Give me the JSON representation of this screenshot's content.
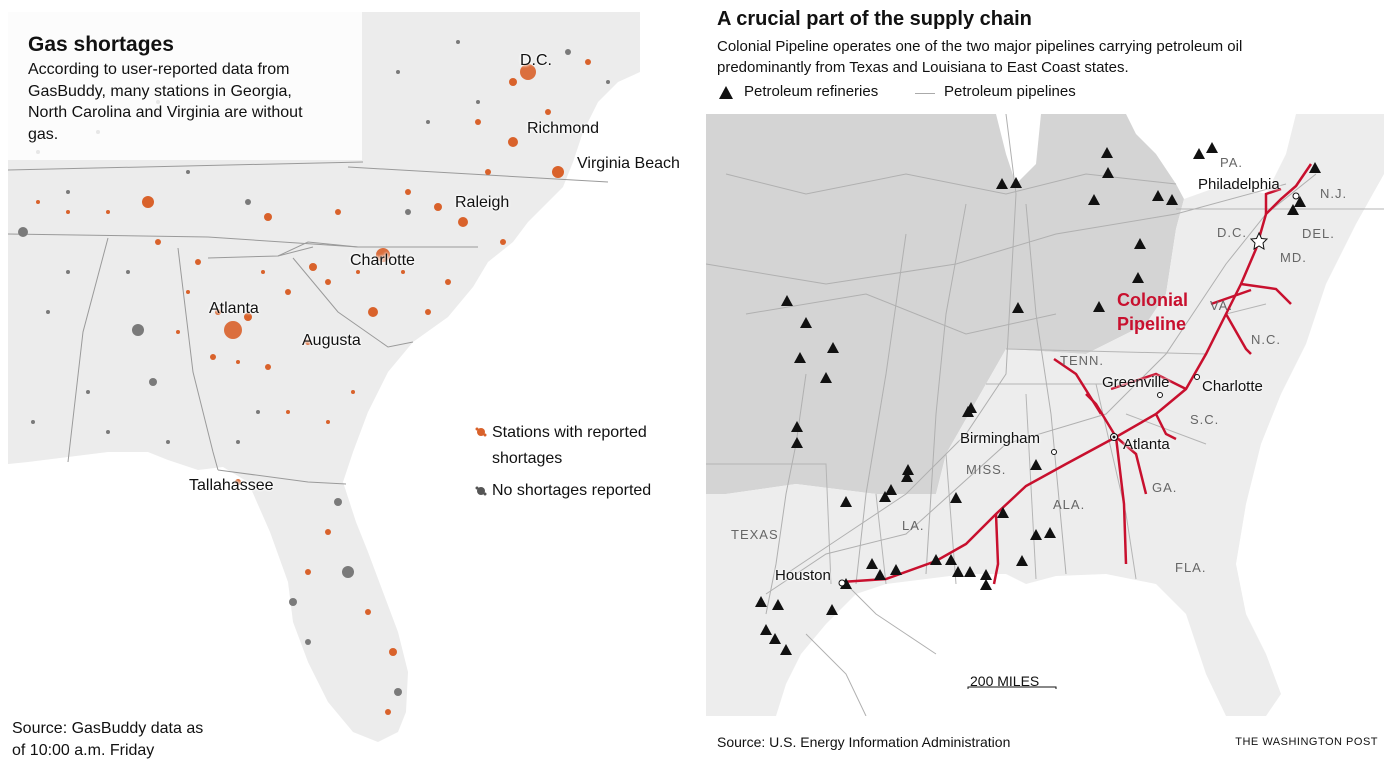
{
  "left_map": {
    "title": "Gas shortages",
    "description": "According to user-reported data from GasBuddy, many stations in Georgia, North Carolina and Virginia are without gas.",
    "cities": [
      "D.C.",
      "Richmond",
      "Virginia Beach",
      "Raleigh",
      "Charlotte",
      "Atlanta",
      "Augusta",
      "Tallahassee"
    ],
    "legend": {
      "shortage": "Stations with reported shortages",
      "no_shortage": "No shortages reported"
    },
    "source": "Source: GasBuddy data as of 10:00 a.m. Friday",
    "colors": {
      "shortage": "#d9622b",
      "no_shortage": "#555555",
      "land": "#eeeeee",
      "water": "#ffffff"
    }
  },
  "right_map": {
    "title": "A crucial part of the supply chain",
    "description": "Colonial Pipeline operates one of the two major pipelines carrying petroleum oil predominantly from Texas and Louisiana to East Coast states.",
    "legend": {
      "refineries": "Petroleum refineries",
      "pipelines": "Petroleum pipelines"
    },
    "pipeline_label": "Colonial Pipeline",
    "states": [
      "PA.",
      "N.J.",
      "D.C.",
      "DEL.",
      "MD.",
      "VA.",
      "N.C.",
      "TENN.",
      "S.C.",
      "MISS.",
      "ALA.",
      "GA.",
      "LA.",
      "TEXAS",
      "FLA."
    ],
    "cities": [
      "Philadelphia",
      "Greenville",
      "Charlotte",
      "Birmingham",
      "Atlanta",
      "Houston"
    ],
    "scale": "200 MILES",
    "source": "Source: U.S. Energy Information Administration",
    "colors": {
      "pipeline": "#c8102e",
      "dark_land": "#d4d4d4",
      "light_land": "#ededed"
    }
  },
  "credit": "THE WASHINGTON POST"
}
